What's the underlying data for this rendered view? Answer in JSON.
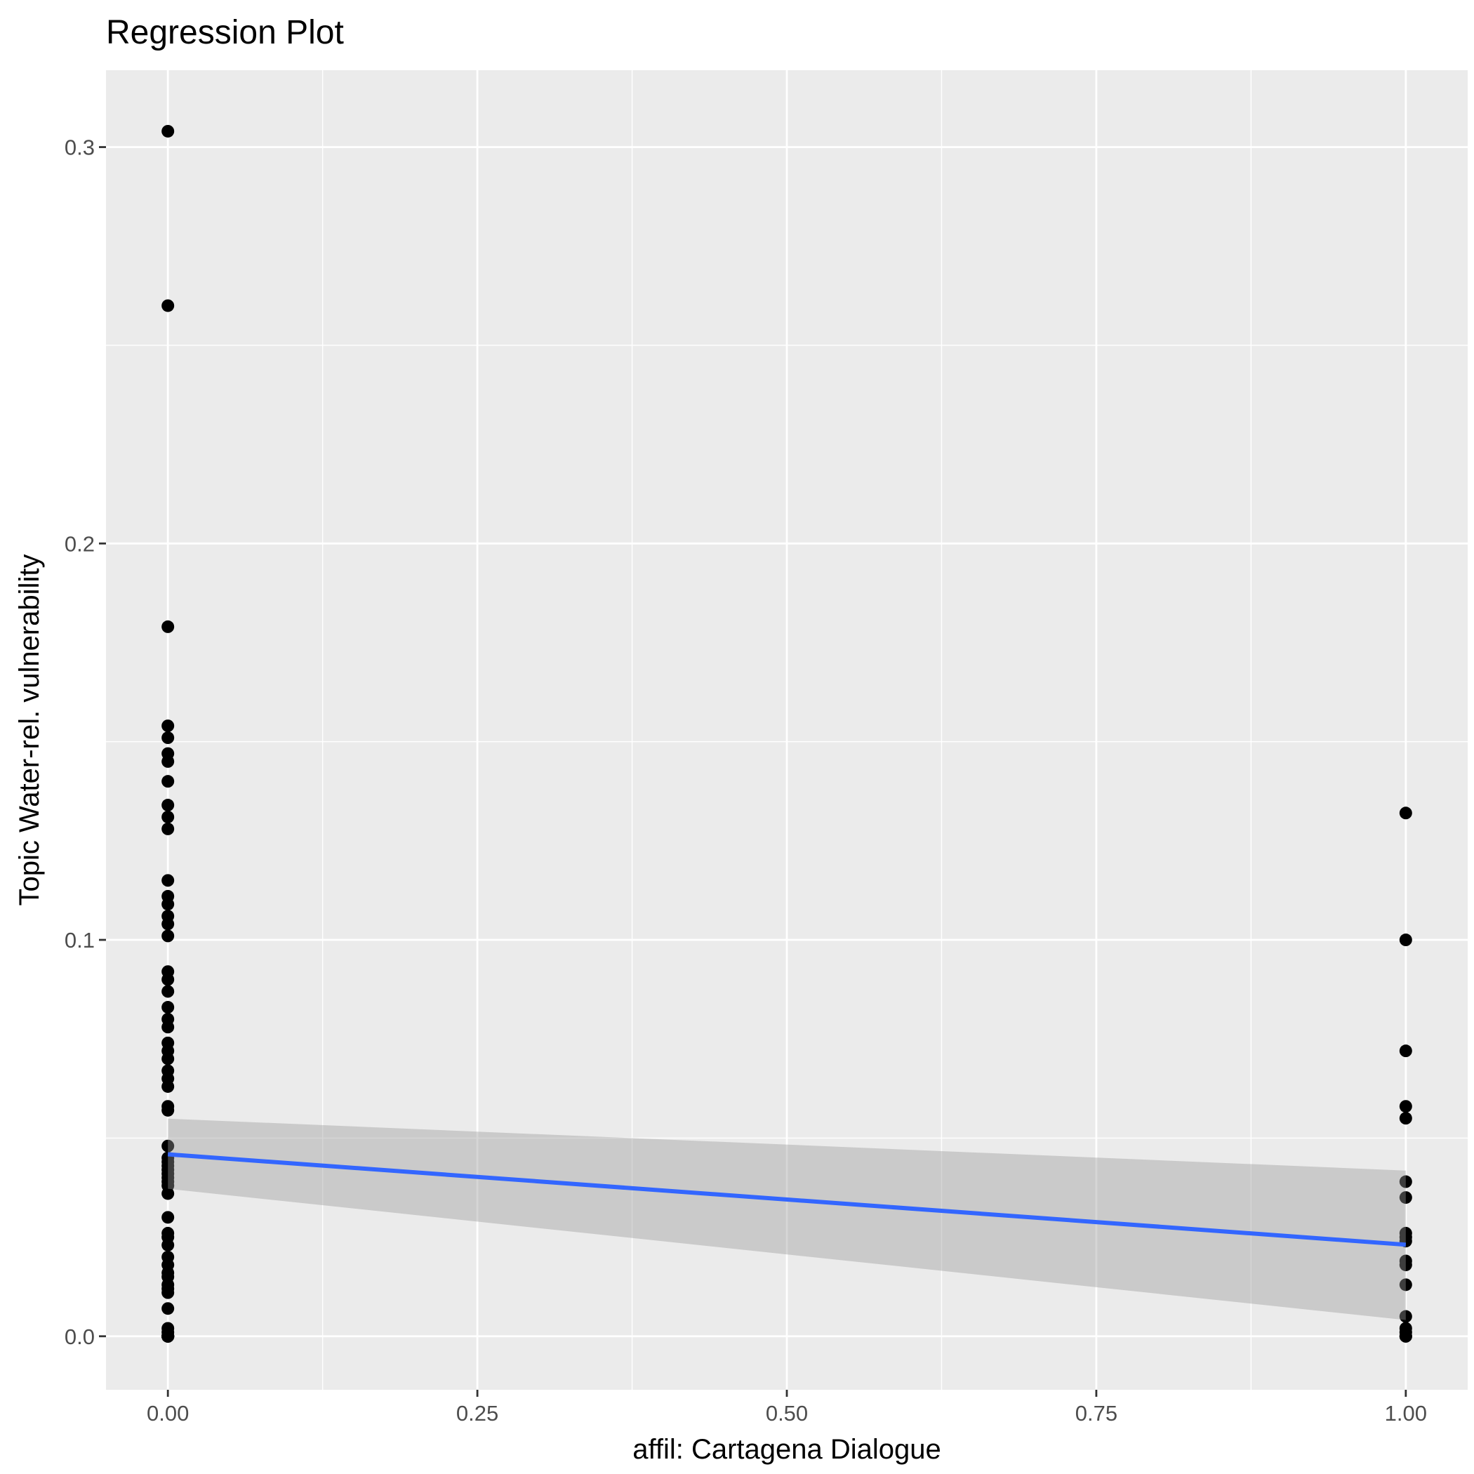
{
  "chart_data": {
    "type": "scatter",
    "title": "Regression Plot",
    "xlabel": "affil: Cartagena Dialogue",
    "ylabel": "Topic Water-rel. vulnerability",
    "xlim": [
      -0.05,
      1.05
    ],
    "ylim": [
      -0.0135,
      0.3194
    ],
    "x_ticks": [
      0,
      0.25,
      0.5,
      0.75,
      1
    ],
    "x_tick_labels": [
      "0.00",
      "0.25",
      "0.50",
      "0.75",
      "1.00"
    ],
    "y_ticks": [
      0,
      0.1,
      0.2,
      0.3
    ],
    "y_tick_labels": [
      "0.0",
      "0.1",
      "0.2",
      "0.3"
    ],
    "grid": true,
    "legend": "none",
    "colors": {
      "panel": "#ebebeb",
      "grid": "#ffffff",
      "point": "#000000",
      "fit_line": "#3366ff",
      "band": "#999999"
    },
    "series": [
      {
        "x": [
          0,
          0,
          0,
          0,
          0,
          0,
          0,
          0,
          0,
          0,
          0,
          0,
          0,
          0,
          0,
          0,
          0,
          0,
          0,
          0,
          0,
          0,
          0,
          0,
          0,
          0,
          0,
          0,
          0,
          0,
          0,
          0,
          0,
          0,
          0,
          0,
          0,
          0,
          0,
          0,
          0,
          0,
          0,
          0,
          0,
          0,
          0,
          0,
          0,
          0,
          0,
          0,
          0,
          0,
          0,
          0,
          0,
          0,
          0,
          0,
          0,
          0,
          0,
          0,
          0,
          0,
          0,
          0,
          0,
          0,
          0,
          0,
          0,
          0,
          0,
          0
        ],
        "y": [
          0.304,
          0.26,
          0.179,
          0.154,
          0.151,
          0.147,
          0.145,
          0.14,
          0.134,
          0.131,
          0.128,
          0.115,
          0.111,
          0.109,
          0.106,
          0.104,
          0.101,
          0.092,
          0.09,
          0.087,
          0.083,
          0.08,
          0.078,
          0.074,
          0.072,
          0.07,
          0.067,
          0.065,
          0.063,
          0.058,
          0.057,
          0.048,
          0.045,
          0.044,
          0.043,
          0.042,
          0.041,
          0.04,
          0.039,
          0.038,
          0.036,
          0.03,
          0.026,
          0.025,
          0.023,
          0.02,
          0.018,
          0.016,
          0.015,
          0.013,
          0.012,
          0.011,
          0.007,
          0.002,
          0.001,
          0.0,
          0.0,
          0.0,
          0.0,
          0.0,
          0.0,
          0.0,
          0.0,
          0.0,
          0.0,
          0.0,
          0.0,
          0.0,
          0.0,
          0.0,
          0.0,
          0.0,
          0.0,
          0.0,
          0.0,
          0.0
        ]
      },
      {
        "x": [
          1,
          1,
          1,
          1,
          1,
          1,
          1,
          1,
          1,
          1,
          1,
          1,
          1,
          1,
          1,
          1,
          1,
          1,
          1
        ],
        "y": [
          0.132,
          0.1,
          0.072,
          0.058,
          0.055,
          0.039,
          0.035,
          0.026,
          0.025,
          0.024,
          0.019,
          0.018,
          0.013,
          0.005,
          0.002,
          0.001,
          0.0,
          0.0,
          0.0
        ]
      }
    ],
    "fit": {
      "x": [
        0,
        1
      ],
      "y": [
        0.0459,
        0.0231
      ],
      "ci_lower": [
        0.0372,
        0.0041
      ],
      "ci_upper": [
        0.0549,
        0.0418
      ]
    }
  }
}
